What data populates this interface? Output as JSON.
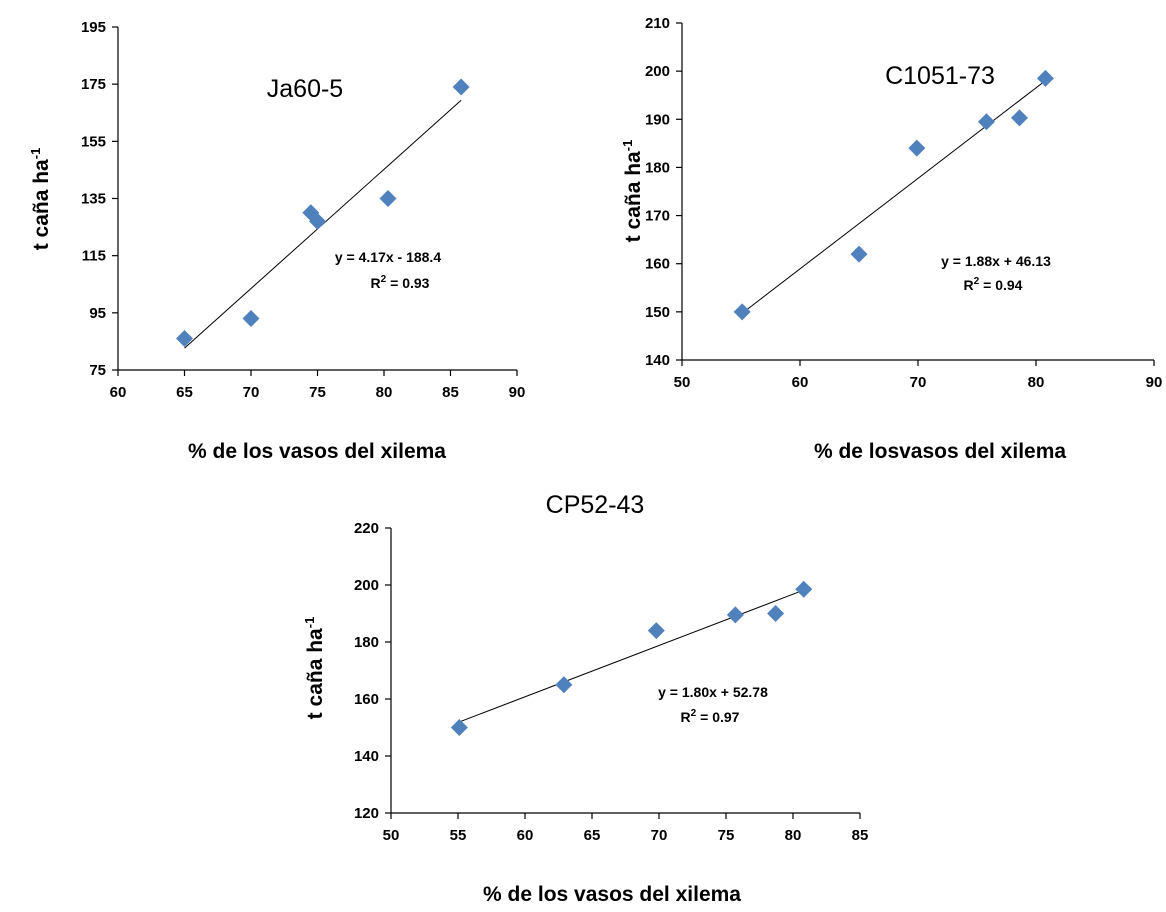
{
  "chart_data": [
    {
      "type": "scatter",
      "title": "Ja60-5",
      "xlabel": "% de los vasos del xilema",
      "ylabel": "t caña ha",
      "ylabel_sup": "-1",
      "xlim": [
        60,
        90
      ],
      "ylim": [
        75,
        195
      ],
      "xticks": [
        60,
        65,
        70,
        75,
        80,
        85,
        90
      ],
      "yticks": [
        75,
        95,
        115,
        135,
        155,
        175,
        195
      ],
      "points": [
        {
          "x": 65.0,
          "y": 86
        },
        {
          "x": 70.0,
          "y": 93
        },
        {
          "x": 74.5,
          "y": 130
        },
        {
          "x": 75.0,
          "y": 127
        },
        {
          "x": 80.3,
          "y": 135
        },
        {
          "x": 85.8,
          "y": 174
        }
      ],
      "trendline": {
        "slope": 4.17,
        "intercept": -188.4,
        "x_range": [
          65.0,
          85.8
        ]
      },
      "equation": "y = 4.17x - 188.4",
      "r2_label": "R",
      "r2_value": " = 0.93",
      "marker_color": "#4F81BD",
      "grid": false,
      "legend": "none"
    },
    {
      "type": "scatter",
      "title": "C1051-73",
      "xlabel": "% de losvasos del xilema",
      "ylabel": "t caña ha",
      "ylabel_sup": "-1",
      "xlim": [
        50,
        90
      ],
      "ylim": [
        140,
        210
      ],
      "xticks": [
        50,
        60,
        70,
        80,
        90
      ],
      "yticks": [
        140,
        150,
        160,
        170,
        180,
        190,
        200,
        210
      ],
      "points": [
        {
          "x": 55.1,
          "y": 150
        },
        {
          "x": 65.0,
          "y": 162
        },
        {
          "x": 69.9,
          "y": 184
        },
        {
          "x": 75.8,
          "y": 189.5
        },
        {
          "x": 78.6,
          "y": 190.3
        },
        {
          "x": 80.8,
          "y": 198.5
        }
      ],
      "trendline": {
        "slope": 1.88,
        "intercept": 46.13,
        "x_range": [
          55.1,
          80.8
        ]
      },
      "equation": "y = 1.88x + 46.13",
      "r2_label": "R",
      "r2_value": " = 0.94",
      "marker_color": "#4F81BD",
      "grid": false,
      "legend": "none"
    },
    {
      "type": "scatter",
      "title": "CP52-43",
      "xlabel": "% de los vasos del xilema",
      "ylabel": "t caña ha",
      "ylabel_sup": "-1",
      "xlim": [
        50,
        85
      ],
      "ylim": [
        120,
        220
      ],
      "xticks": [
        50,
        55,
        60,
        65,
        70,
        75,
        80,
        85
      ],
      "yticks": [
        120,
        140,
        160,
        180,
        200,
        220
      ],
      "points": [
        {
          "x": 55.1,
          "y": 150
        },
        {
          "x": 62.9,
          "y": 165
        },
        {
          "x": 69.8,
          "y": 184
        },
        {
          "x": 75.7,
          "y": 189.5
        },
        {
          "x": 78.7,
          "y": 190
        },
        {
          "x": 80.8,
          "y": 198.5
        }
      ],
      "trendline": {
        "slope": 1.8,
        "intercept": 52.78,
        "x_range": [
          55.1,
          80.8
        ]
      },
      "equation": "y = 1.80x + 52.78",
      "r2_label": "R",
      "r2_value": " = 0.97",
      "marker_color": "#4F81BD",
      "grid": false,
      "legend": "none"
    }
  ]
}
